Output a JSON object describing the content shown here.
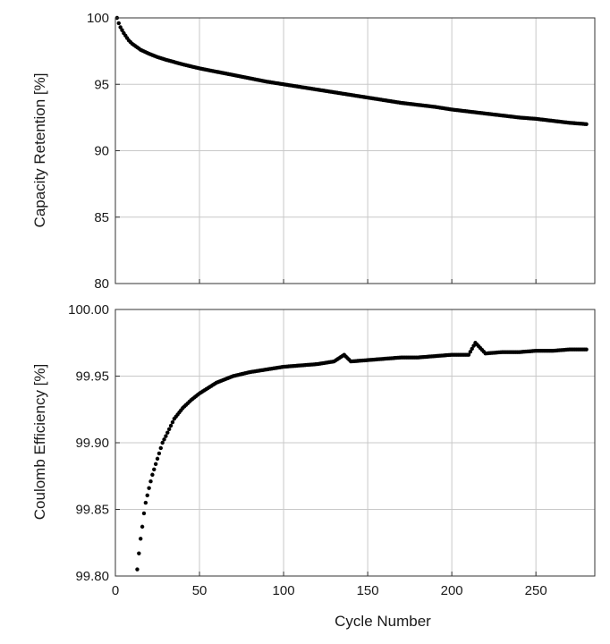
{
  "chart_data": [
    {
      "type": "scatter",
      "ylabel": "Capacity Retention [%]",
      "xlabel": "",
      "xlim": [
        0,
        285
      ],
      "ylim": [
        80,
        100
      ],
      "xticks": [
        0,
        50,
        100,
        150,
        200,
        250
      ],
      "yticks": [
        80,
        85,
        90,
        95,
        100
      ],
      "ytick_labels": [
        "80",
        "85",
        "90",
        "95",
        "100"
      ],
      "xtick_labels_shown": false,
      "grid": true,
      "marker_color": "#000000",
      "series": [
        {
          "x": [
            1,
            2,
            3,
            5,
            8,
            10,
            15,
            20,
            25,
            30,
            40,
            50,
            60,
            70,
            80,
            90,
            100,
            110,
            120,
            130,
            140,
            150,
            160,
            170,
            180,
            190,
            200,
            210,
            220,
            230,
            240,
            250,
            260,
            270,
            280
          ],
          "values": [
            100.0,
            99.6,
            99.3,
            98.85,
            98.3,
            98.05,
            97.6,
            97.3,
            97.05,
            96.85,
            96.5,
            96.2,
            95.95,
            95.7,
            95.45,
            95.2,
            95.0,
            94.8,
            94.6,
            94.4,
            94.2,
            94.0,
            93.8,
            93.6,
            93.45,
            93.3,
            93.1,
            92.95,
            92.8,
            92.65,
            92.5,
            92.4,
            92.25,
            92.1,
            92.0
          ]
        }
      ]
    },
    {
      "type": "scatter",
      "ylabel": "Coulomb Efficiency [%]",
      "xlabel": "Cycle Number",
      "xlim": [
        0,
        285
      ],
      "ylim": [
        99.8,
        100.0
      ],
      "xticks": [
        0,
        50,
        100,
        150,
        200,
        250
      ],
      "xtick_labels": [
        "0",
        "50",
        "100",
        "150",
        "200",
        "250"
      ],
      "yticks": [
        99.8,
        99.85,
        99.9,
        99.95,
        100.0
      ],
      "ytick_labels": [
        "99.80",
        "99.85",
        "99.90",
        "99.95",
        "100.00"
      ],
      "grid": true,
      "marker_color": "#000000",
      "series": [
        {
          "x": [
            13,
            14,
            15,
            16,
            17,
            18,
            20,
            22,
            25,
            28,
            30,
            35,
            40,
            45,
            50,
            55,
            60,
            70,
            80,
            90,
            100,
            110,
            120,
            130,
            136,
            140,
            150,
            160,
            170,
            180,
            190,
            200,
            210,
            214,
            220,
            230,
            240,
            250,
            260,
            270,
            280
          ],
          "values": [
            99.805,
            99.817,
            99.828,
            99.837,
            99.847,
            99.855,
            99.866,
            99.876,
            99.888,
            99.9,
            99.905,
            99.918,
            99.926,
            99.932,
            99.937,
            99.941,
            99.945,
            99.95,
            99.953,
            99.955,
            99.957,
            99.958,
            99.959,
            99.961,
            99.966,
            99.961,
            99.962,
            99.963,
            99.964,
            99.964,
            99.965,
            99.966,
            99.966,
            99.975,
            99.967,
            99.968,
            99.968,
            99.969,
            99.969,
            99.97,
            99.97
          ]
        }
      ]
    }
  ]
}
